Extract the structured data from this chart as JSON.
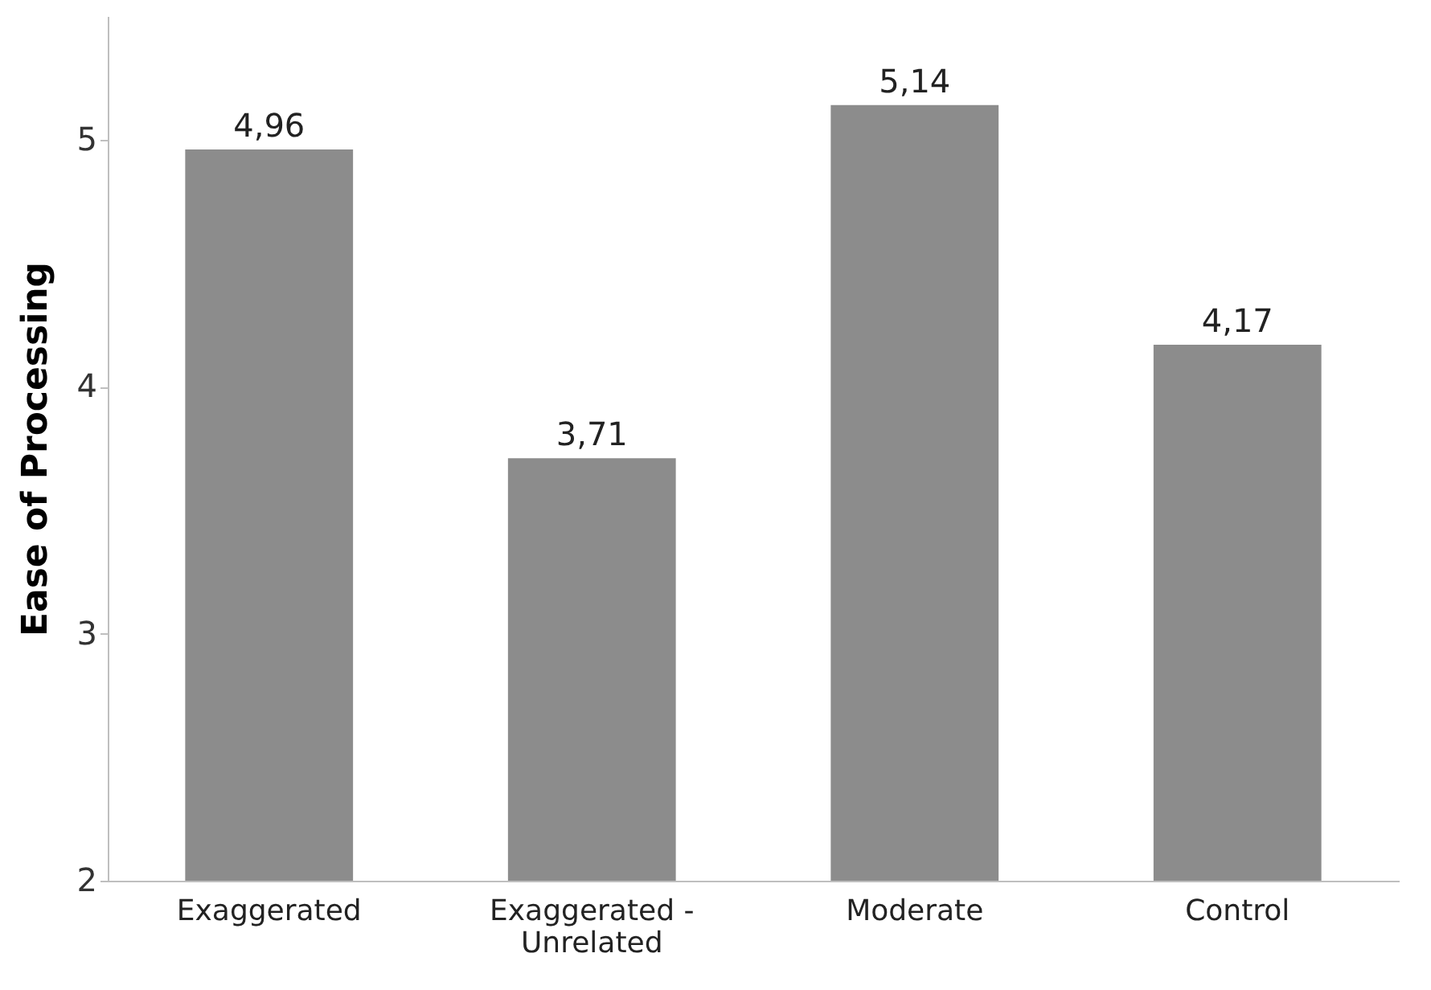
{
  "chart_data": {
    "type": "bar",
    "ylabel": "Ease of Processing",
    "categories": [
      "Exaggerated",
      "Exaggerated - Unrelated",
      "Moderate",
      "Control"
    ],
    "values": [
      4.96,
      3.71,
      5.14,
      4.17
    ],
    "value_labels": [
      "4,96",
      "3,71",
      "5,14",
      "4,17"
    ],
    "color": "#8c8c8c",
    "ylim": [
      2,
      5.5
    ],
    "yticks": [
      2,
      3,
      4,
      5
    ],
    "grid": false
  }
}
